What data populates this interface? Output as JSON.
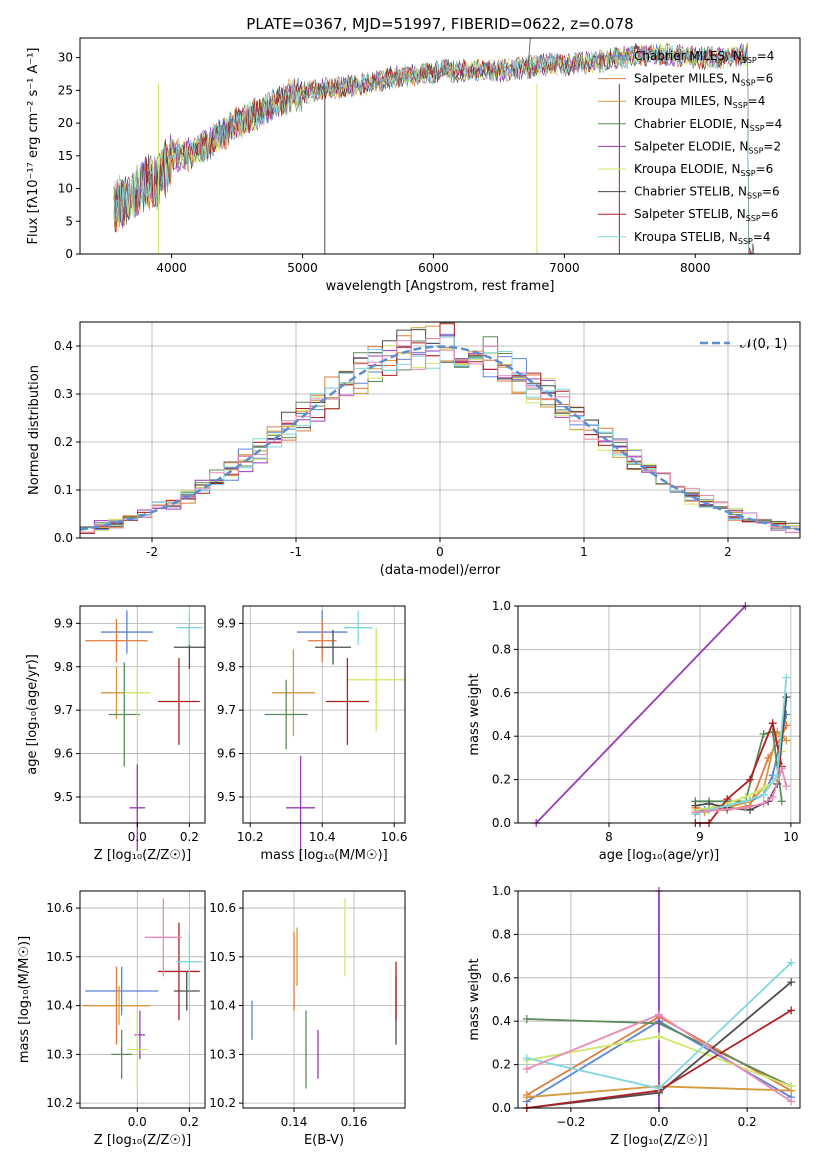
{
  "figure_title": "PLATE=0367, MJD=51997, FIBERID=0622, z=0.078",
  "colors": {
    "c0": "#5b85d6",
    "c1": "#e07a3b",
    "c2": "#d49a3c",
    "c3": "#5d8a5d",
    "c4": "#9a3ab8",
    "c5": "#cfe86a",
    "c6": "#4d4d4d",
    "c7": "#b01f24",
    "c8": "#7fd8e0",
    "pink": "#e88ab8",
    "dashed": "#5b8fd0"
  },
  "models": [
    {
      "name": "Chabrier MILES",
      "n": "4"
    },
    {
      "name": "Salpeter MILES",
      "n": "6"
    },
    {
      "name": "Kroupa MILES",
      "n": "4"
    },
    {
      "name": "Chabrier ELODIE",
      "n": "4"
    },
    {
      "name": "Salpeter ELODIE",
      "n": "2"
    },
    {
      "name": "Kroupa ELODIE",
      "n": "6"
    },
    {
      "name": "Chabrier STELIB",
      "n": "6"
    },
    {
      "name": "Salpeter STELIB",
      "n": "6"
    },
    {
      "name": "Kroupa STELIB",
      "n": "4"
    }
  ],
  "chart_data": [
    {
      "id": "spectrum",
      "type": "line",
      "xlabel": "wavelength [Angstrom, rest frame]",
      "ylabel": "Flux [fλ10⁻¹⁷ erg cm⁻² s⁻¹ A⁻¹]",
      "xlim": [
        3300,
        8800
      ],
      "ylim": [
        0,
        33
      ],
      "xticks": [
        4000,
        5000,
        6000,
        7000,
        8000
      ],
      "yticks": [
        0,
        5,
        10,
        15,
        20,
        25,
        30
      ],
      "legend": "right",
      "continuum": [
        [
          3550,
          7
        ],
        [
          3700,
          9
        ],
        [
          3800,
          11
        ],
        [
          3900,
          11
        ],
        [
          4000,
          15
        ],
        [
          4100,
          15
        ],
        [
          4200,
          16
        ],
        [
          4300,
          17
        ],
        [
          4500,
          20
        ],
        [
          4700,
          22
        ],
        [
          4900,
          24
        ],
        [
          5100,
          25
        ],
        [
          5300,
          25.5
        ],
        [
          5500,
          26
        ],
        [
          5700,
          27
        ],
        [
          5900,
          27.5
        ],
        [
          6100,
          28
        ],
        [
          6300,
          28
        ],
        [
          6500,
          28
        ],
        [
          6700,
          28.5
        ],
        [
          6900,
          29
        ],
        [
          7100,
          29
        ],
        [
          7300,
          29.5
        ],
        [
          7400,
          30
        ],
        [
          7600,
          30.5
        ],
        [
          7800,
          30.5
        ],
        [
          8000,
          30
        ],
        [
          8200,
          30
        ],
        [
          8400,
          30.5
        ]
      ]
    },
    {
      "id": "residuals",
      "type": "histogram",
      "xlabel": "(data-model)/error",
      "ylabel": "Normed distribution",
      "xlim": [
        -2.5,
        2.5
      ],
      "ylim": [
        0,
        0.45
      ],
      "xticks": [
        -2,
        -1,
        0,
        1,
        2
      ],
      "yticks": [
        0.0,
        0.1,
        0.2,
        0.3,
        0.4
      ],
      "grid": true,
      "legend": "top-right",
      "reference_label": "𝒩(0, 1)",
      "bin_width": 0.1
    },
    {
      "id": "age_vs_Z",
      "type": "scatter",
      "xlabel": "Z [log₁₀(Z/Z☉)]",
      "ylabel": "age  [log₁₀(age/yr)]",
      "xlim": [
        -0.22,
        0.26
      ],
      "ylim": [
        9.44,
        9.94
      ],
      "xticks": [
        0.0,
        0.2
      ],
      "xtick_labels": [
        "0.0",
        "0.2"
      ],
      "yticks": [
        9.5,
        9.6,
        9.7,
        9.8,
        9.9
      ],
      "grid": true,
      "points": [
        {
          "x": -0.04,
          "y": 9.88,
          "xerr": 0.1,
          "yerr": 0.05
        },
        {
          "x": -0.08,
          "y": 9.86,
          "xerr": 0.12,
          "yerr": 0.05
        },
        {
          "x": -0.08,
          "y": 9.74,
          "xerr": 0.06,
          "yerr": 0.06
        },
        {
          "x": -0.05,
          "y": 9.69,
          "xerr": 0.06,
          "yerr": 0.12
        },
        {
          "x": 0.0,
          "y": 9.475,
          "xerr": 0.03,
          "yerr": 0.1
        },
        {
          "x": 0.0,
          "y": 9.74,
          "xerr": 0.05,
          "yerr": 0.06
        },
        {
          "x": 0.2,
          "y": 9.845,
          "xerr": 0.06,
          "yerr": 0.05
        },
        {
          "x": 0.16,
          "y": 9.72,
          "xerr": 0.08,
          "yerr": 0.1
        },
        {
          "x": 0.2,
          "y": 9.89,
          "xerr": 0.05,
          "yerr": 0.04
        }
      ]
    },
    {
      "id": "age_vs_mass",
      "type": "scatter",
      "xlabel": "mass [log₁₀(M/M☉)]",
      "ylabel": "",
      "xlim": [
        10.18,
        10.63
      ],
      "ylim": [
        9.44,
        9.94
      ],
      "xticks": [
        10.2,
        10.4,
        10.6
      ],
      "yticks": [
        9.5,
        9.6,
        9.7,
        9.8,
        9.9
      ],
      "grid": true,
      "points": [
        {
          "x": 10.4,
          "y": 9.88,
          "xerr": 0.07,
          "yerr": 0.05
        },
        {
          "x": 10.4,
          "y": 9.86,
          "xerr": 0.04,
          "yerr": 0.05
        },
        {
          "x": 10.32,
          "y": 9.74,
          "xerr": 0.06,
          "yerr": 0.1
        },
        {
          "x": 10.3,
          "y": 9.69,
          "xerr": 0.06,
          "yerr": 0.08
        },
        {
          "x": 10.34,
          "y": 9.475,
          "xerr": 0.04,
          "yerr": 0.12
        },
        {
          "x": 10.55,
          "y": 9.77,
          "xerr": 0.08,
          "yerr": 0.12
        },
        {
          "x": 10.43,
          "y": 9.845,
          "xerr": 0.05,
          "yerr": 0.04
        },
        {
          "x": 10.47,
          "y": 9.72,
          "xerr": 0.06,
          "yerr": 0.1
        },
        {
          "x": 10.5,
          "y": 9.89,
          "xerr": 0.04,
          "yerr": 0.04
        }
      ]
    },
    {
      "id": "mass_weight_vs_age",
      "type": "line",
      "xlabel": "age  [log₁₀(age/yr)]",
      "ylabel": "mass weight",
      "xlim": [
        7.0,
        10.1
      ],
      "ylim": [
        0,
        1.0
      ],
      "xticks": [
        8,
        9,
        10
      ],
      "yticks": [
        0.0,
        0.2,
        0.4,
        0.6,
        0.8,
        1.0
      ],
      "grid": true,
      "series": [
        {
          "x": [
            8.95,
            9.05,
            9.3,
            9.55,
            9.7,
            9.8,
            9.95
          ],
          "y": [
            0.05,
            0.06,
            0.08,
            0.1,
            0.13,
            0.22,
            0.5
          ]
        },
        {
          "x": [
            8.95,
            9.1,
            9.3,
            9.55,
            9.75,
            9.9,
            9.95
          ],
          "y": [
            0.07,
            0.06,
            0.06,
            0.08,
            0.3,
            0.4,
            0.45
          ]
        },
        {
          "x": [
            8.95,
            9.05,
            9.3,
            9.55,
            9.7,
            9.85,
            9.95
          ],
          "y": [
            0.05,
            0.05,
            0.07,
            0.1,
            0.16,
            0.42,
            0.38
          ]
        },
        {
          "x": [
            8.95,
            9.1,
            9.3,
            9.5,
            9.7,
            9.8,
            9.9
          ],
          "y": [
            0.1,
            0.1,
            0.1,
            0.1,
            0.41,
            0.42,
            0.1
          ]
        },
        {
          "x": [
            7.2,
            9.5
          ],
          "y": [
            0.0,
            1.0
          ]
        },
        {
          "x": [
            8.95,
            9.1,
            9.3,
            9.5,
            9.7,
            9.85,
            9.9
          ],
          "y": [
            0.06,
            0.07,
            0.09,
            0.12,
            0.16,
            0.2,
            0.33
          ]
        },
        {
          "x": [
            8.95,
            9.1,
            9.3,
            9.55,
            9.75,
            9.85,
            9.95
          ],
          "y": [
            0.08,
            0.09,
            0.07,
            0.06,
            0.1,
            0.18,
            0.58
          ]
        },
        {
          "x": [
            8.95,
            9.1,
            9.3,
            9.55,
            9.8,
            9.9
          ],
          "y": [
            0.0,
            0.0,
            0.11,
            0.2,
            0.46,
            0.26
          ]
        },
        {
          "x": [
            8.95,
            9.1,
            9.3,
            9.5,
            9.7,
            9.85,
            9.95
          ],
          "y": [
            0.04,
            0.06,
            0.08,
            0.1,
            0.13,
            0.22,
            0.67
          ]
        },
        {
          "x": [
            8.95,
            9.2,
            9.5,
            9.7,
            9.8,
            9.9,
            9.95
          ],
          "y": [
            0.05,
            0.06,
            0.07,
            0.09,
            0.12,
            0.25,
            0.17
          ]
        }
      ]
    },
    {
      "id": "mass_vs_Z",
      "type": "scatter",
      "xlabel": "Z [log₁₀(Z/Z☉)]",
      "ylabel": "mass [log₁₀(M/M☉)]",
      "xlim": [
        -0.22,
        0.26
      ],
      "ylim": [
        10.19,
        10.635
      ],
      "xticks": [
        0.0,
        0.2
      ],
      "xtick_labels": [
        "0.0",
        "0.2"
      ],
      "yticks": [
        10.2,
        10.3,
        10.4,
        10.5,
        10.6
      ],
      "grid": true,
      "points": [
        {
          "x": -0.06,
          "y": 10.43,
          "xerr": 0.14,
          "yerr": 0.05
        },
        {
          "x": -0.08,
          "y": 10.4,
          "xerr": 0.13,
          "yerr": 0.08
        },
        {
          "x": -0.07,
          "y": 10.4,
          "xerr": 0.12,
          "yerr": 0.04
        },
        {
          "x": -0.06,
          "y": 10.3,
          "xerr": 0.04,
          "yerr": 0.05
        },
        {
          "x": 0.01,
          "y": 10.34,
          "xerr": 0.02,
          "yerr": 0.05
        },
        {
          "x": 0.0,
          "y": 10.31,
          "xerr": 0.04,
          "yerr": 0.08
        },
        {
          "x": 0.19,
          "y": 10.43,
          "xerr": 0.05,
          "yerr": 0.04
        },
        {
          "x": 0.16,
          "y": 10.47,
          "xerr": 0.08,
          "yerr": 0.1
        },
        {
          "x": 0.2,
          "y": 10.49,
          "xerr": 0.05,
          "yerr": 0.06
        },
        {
          "x": 0.1,
          "y": 10.54,
          "xerr": 0.07,
          "yerr": 0.08
        }
      ]
    },
    {
      "id": "mass_vs_EBV",
      "type": "scatter",
      "xlabel": "E(B-V)",
      "ylabel": "",
      "xlim": [
        0.123,
        0.177
      ],
      "ylim": [
        10.19,
        10.635
      ],
      "xticks": [
        0.14,
        0.16
      ],
      "xtick_labels": [
        "0.14",
        "0.16"
      ],
      "yticks": [
        10.2,
        10.3,
        10.4,
        10.5,
        10.6
      ],
      "grid": true,
      "points": [
        {
          "x": 0.126,
          "y": 10.37,
          "yerr": 0.04
        },
        {
          "x": 0.14,
          "y": 10.47,
          "yerr": 0.08
        },
        {
          "x": 0.141,
          "y": 10.5,
          "yerr": 0.06
        },
        {
          "x": 0.144,
          "y": 10.31,
          "yerr": 0.08
        },
        {
          "x": 0.148,
          "y": 10.3,
          "yerr": 0.05
        },
        {
          "x": 0.157,
          "y": 10.54,
          "yerr": 0.08
        },
        {
          "x": 0.174,
          "y": 10.39,
          "yerr": 0.07
        },
        {
          "x": 0.174,
          "y": 10.43,
          "yerr": 0.06
        }
      ]
    },
    {
      "id": "mass_weight_vs_Z",
      "type": "line",
      "xlabel": "Z [log₁₀(Z/Z☉)]",
      "ylabel": "mass weight",
      "xlim": [
        -0.32,
        0.32
      ],
      "ylim": [
        0,
        1.0
      ],
      "xticks": [
        -0.2,
        0.0,
        0.2
      ],
      "xtick_labels": [
        "−0.2",
        "0.0",
        "0.2"
      ],
      "yticks": [
        0.0,
        0.2,
        0.4,
        0.6,
        0.8,
        1.0
      ],
      "grid": true,
      "series": [
        {
          "x": [
            -0.3,
            0.0,
            0.3
          ],
          "y": [
            0.03,
            0.4,
            0.05
          ]
        },
        {
          "x": [
            -0.3,
            0.0,
            0.3
          ],
          "y": [
            0.06,
            0.42,
            0.08
          ]
        },
        {
          "x": [
            -0.3,
            0.0,
            0.3
          ],
          "y": [
            0.05,
            0.1,
            0.08
          ]
        },
        {
          "x": [
            -0.3,
            0.0,
            0.3
          ],
          "y": [
            0.41,
            0.39,
            0.1
          ]
        },
        {
          "x": [
            0.0,
            0.0
          ],
          "y": [
            0.0,
            1.0
          ]
        },
        {
          "x": [
            -0.3,
            0.0,
            0.3
          ],
          "y": [
            0.22,
            0.33,
            0.1
          ]
        },
        {
          "x": [
            -0.3,
            0.0,
            0.3
          ],
          "y": [
            0.0,
            0.07,
            0.58
          ]
        },
        {
          "x": [
            -0.3,
            0.0,
            0.3
          ],
          "y": [
            0.0,
            0.08,
            0.45
          ]
        },
        {
          "x": [
            -0.3,
            0.0,
            0.3
          ],
          "y": [
            0.23,
            0.09,
            0.67
          ]
        },
        {
          "x": [
            -0.3,
            0.0,
            0.3
          ],
          "y": [
            0.18,
            0.43,
            0.03
          ]
        }
      ]
    }
  ]
}
